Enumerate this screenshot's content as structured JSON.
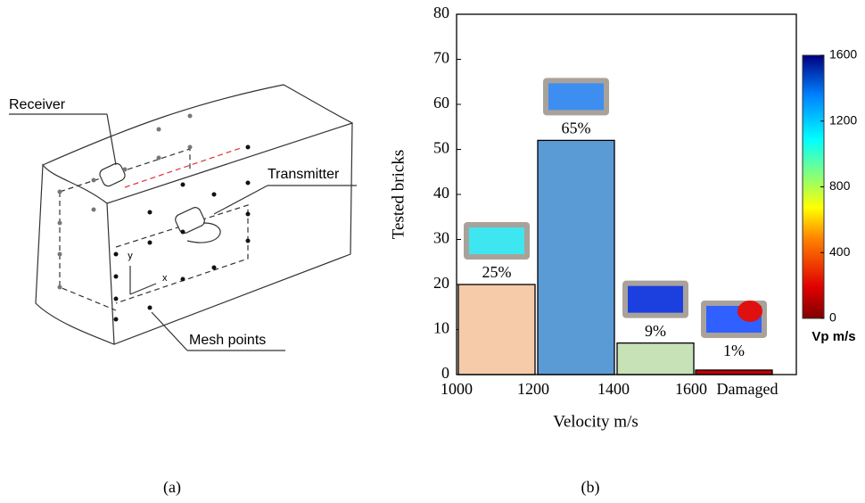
{
  "diagram": {
    "labels": {
      "receiver": "Receiver",
      "transmitter": "Transmitter",
      "mesh_points": "Mesh points",
      "y_axis": "y",
      "x_axis": "x"
    }
  },
  "chart_data": {
    "type": "bar",
    "y_label": "Tested bricks",
    "x_label": "Velocity m/s",
    "xtick_labels": [
      "1000",
      "1200",
      "1400",
      "1600",
      "Damaged"
    ],
    "values": [
      20,
      52,
      7,
      1
    ],
    "annotations": [
      "25%",
      "65%",
      "9%",
      "1%"
    ],
    "colors": [
      "#f6cba9",
      "#5b9bd5",
      "#c7e2b6",
      "#c00000"
    ],
    "ylim": [
      0,
      80
    ],
    "yticks": [
      0,
      10,
      20,
      30,
      40,
      50,
      60,
      70,
      80
    ],
    "colorbar": {
      "lim": [
        0,
        1600
      ],
      "ticks": [
        0,
        400,
        800,
        1200,
        1600
      ],
      "label": "Vp m/s"
    }
  },
  "captions": [
    "(a)",
    "(b)"
  ]
}
